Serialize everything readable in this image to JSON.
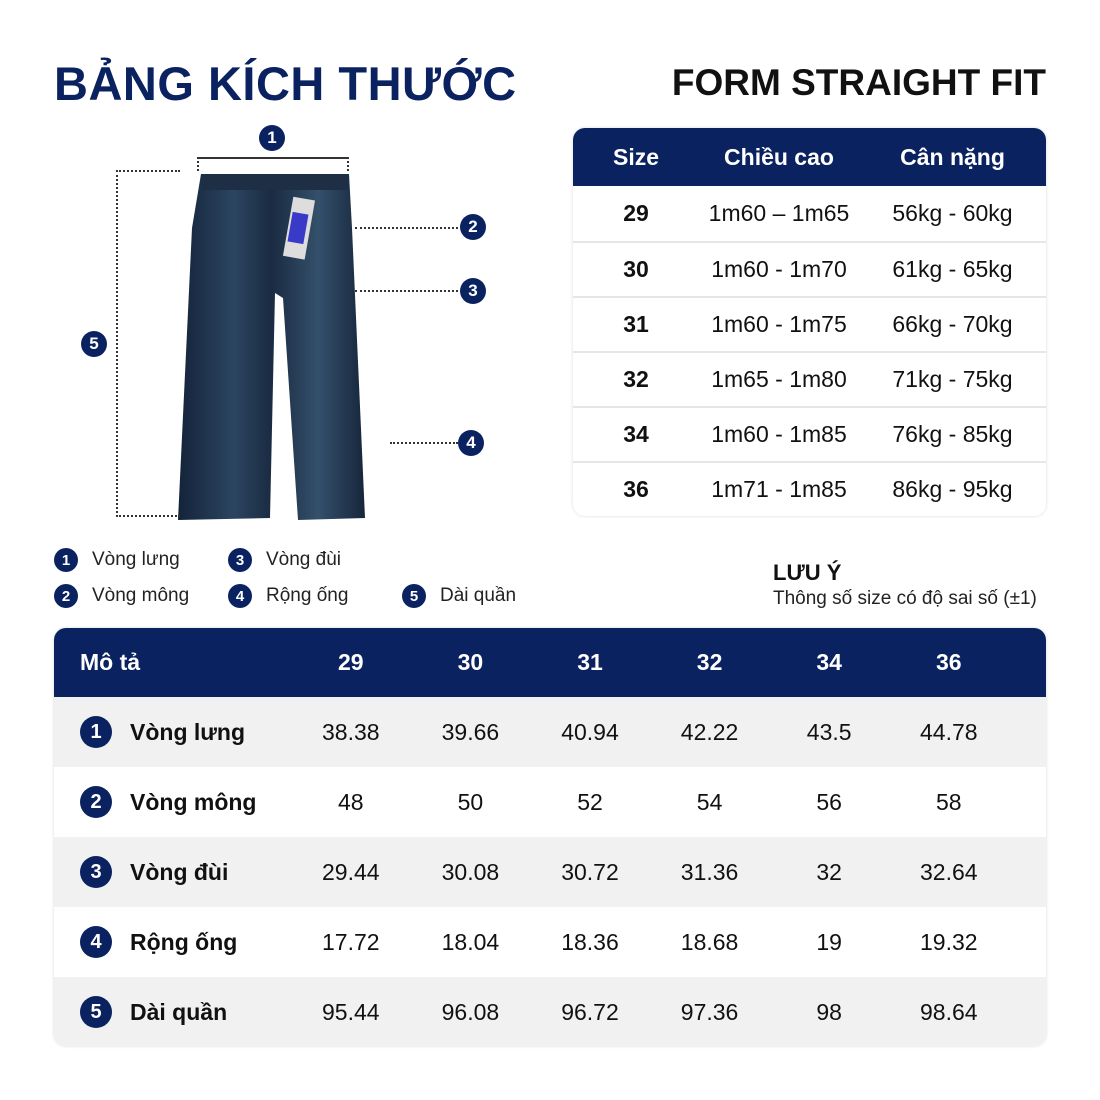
{
  "title": "BẢNG KÍCH THƯỚC",
  "form": "FORM STRAIGHT FIT",
  "brand_color": "#0b2260",
  "size_table": {
    "headers": [
      "Size",
      "Chiều cao",
      "Cân nặng"
    ],
    "rows": [
      [
        "29",
        "1m60 – 1m65",
        "56kg - 60kg"
      ],
      [
        "30",
        "1m60 - 1m70",
        "61kg - 65kg"
      ],
      [
        "31",
        "1m60 - 1m75",
        "66kg - 70kg"
      ],
      [
        "32",
        "1m65 - 1m80",
        "71kg - 75kg"
      ],
      [
        "34",
        "1m60 - 1m85",
        "76kg - 85kg"
      ],
      [
        "36",
        "1m71 - 1m85",
        "86kg - 95kg"
      ]
    ]
  },
  "legend": [
    {
      "num": "1",
      "label": "Vòng lưng"
    },
    {
      "num": "2",
      "label": "Vòng mông"
    },
    {
      "num": "3",
      "label": "Vòng đùi"
    },
    {
      "num": "4",
      "label": "Rộng ống"
    },
    {
      "num": "5",
      "label": "Dài quần"
    }
  ],
  "note": {
    "title": "LƯU Ý",
    "text": "Thông số size có độ sai số (±1)"
  },
  "measure_table": {
    "headers": [
      "Mô tả",
      "29",
      "30",
      "31",
      "32",
      "34",
      "36"
    ],
    "rows": [
      {
        "num": "1",
        "label": "Vòng lưng",
        "values": [
          "38.38",
          "39.66",
          "40.94",
          "42.22",
          "43.5",
          "44.78"
        ]
      },
      {
        "num": "2",
        "label": "Vòng mông",
        "values": [
          "48",
          "50",
          "52",
          "54",
          "56",
          "58"
        ]
      },
      {
        "num": "3",
        "label": "Vòng đùi",
        "values": [
          "29.44",
          "30.08",
          "30.72",
          "31.36",
          "32",
          "32.64"
        ]
      },
      {
        "num": "4",
        "label": "Rộng ống",
        "values": [
          "17.72",
          "18.04",
          "18.36",
          "18.68",
          "19",
          "19.32"
        ]
      },
      {
        "num": "5",
        "label": "Dài quần",
        "values": [
          "95.44",
          "96.08",
          "96.72",
          "97.36",
          "98",
          "98.64"
        ]
      }
    ]
  }
}
